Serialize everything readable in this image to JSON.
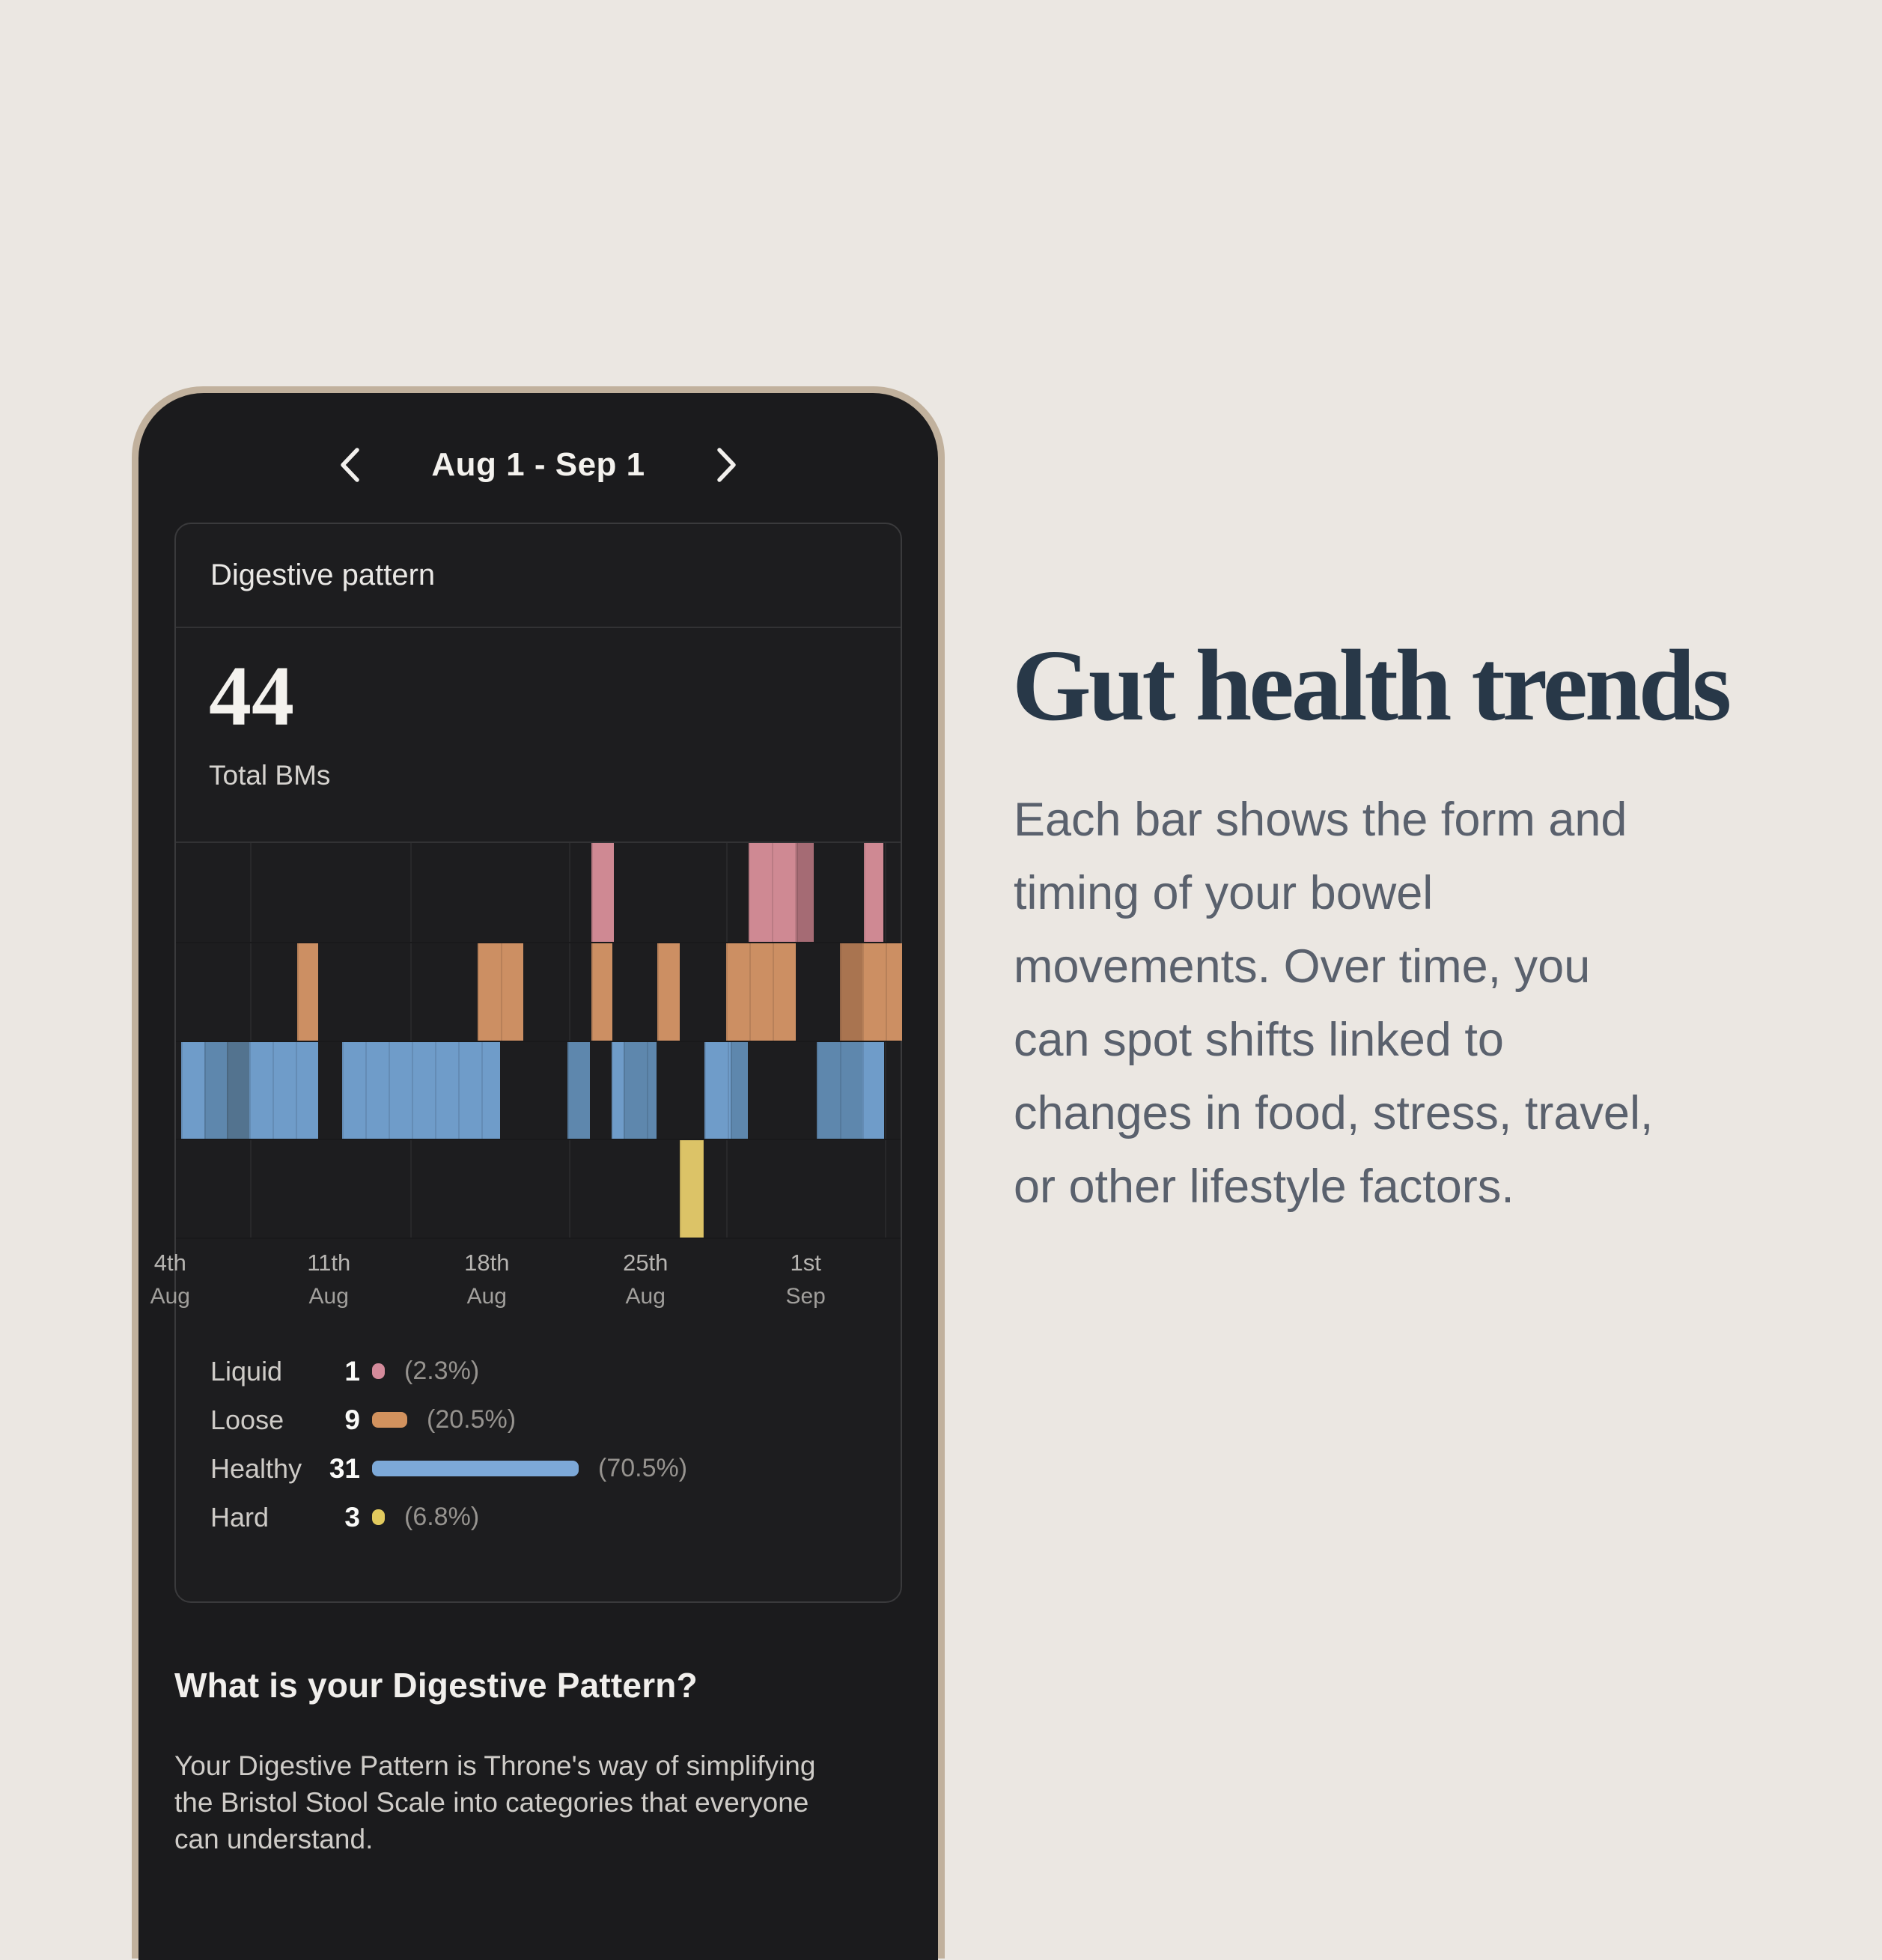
{
  "phone": {
    "header": {
      "date_range": "Aug 1 - Sep 1",
      "prev_icon": "chevron-left",
      "next_icon": "chevron-right"
    },
    "card": {
      "title": "Digestive pattern",
      "total_value": "44",
      "total_label": "Total BMs",
      "chart_data": {
        "type": "heatmap",
        "description": "Timeline of bowel movements Aug 1 - Sep 1; four stacked lanes (Liquid, Loose, Healthy, Hard); bar x-position = date, darker shades = overlapping events",
        "x_range": [
          "Aug 1",
          "Sep 1"
        ],
        "gridlines_pct": [
          10.2,
          32.3,
          54.2,
          75.9,
          97.8
        ],
        "x_ticks": [
          {
            "day": "4th",
            "month": "Aug",
            "pos": -0.8
          },
          {
            "day": "11th",
            "month": "Aug",
            "pos": 21.1
          },
          {
            "day": "18th",
            "month": "Aug",
            "pos": 42.9
          },
          {
            "day": "25th",
            "month": "Aug",
            "pos": 64.8
          },
          {
            "day": "1st",
            "month": "Sep",
            "pos": 86.9
          }
        ],
        "lanes": [
          {
            "name": "Liquid",
            "colors": {
              "light": "#cf8993",
              "dark": "#a56b74"
            },
            "segments": [
              {
                "x": 57.3,
                "w": 3.1,
                "s": "light"
              },
              {
                "x": 79.0,
                "w": 6.6,
                "s": "light"
              },
              {
                "x": 85.6,
                "w": 2.4,
                "s": "dark"
              },
              {
                "x": 94.9,
                "w": 2.7,
                "s": "light"
              }
            ]
          },
          {
            "name": "Loose",
            "colors": {
              "light": "#cc8f63",
              "dark": "#a97450"
            },
            "segments": [
              {
                "x": 16.7,
                "w": 2.9,
                "s": "light"
              },
              {
                "x": 41.6,
                "w": 6.3,
                "s": "light"
              },
              {
                "x": 57.3,
                "w": 2.9,
                "s": "light"
              },
              {
                "x": 66.4,
                "w": 3.1,
                "s": "light"
              },
              {
                "x": 75.9,
                "w": 9.6,
                "s": "light"
              },
              {
                "x": 91.6,
                "w": 3.1,
                "s": "dark"
              },
              {
                "x": 94.7,
                "w": 5.5,
                "s": "light"
              }
            ]
          },
          {
            "name": "Healthy",
            "colors": {
              "light": "#6f9cc9",
              "mid": "#5e87ad",
              "dark": "#53738f"
            },
            "segments": [
              {
                "x": 0.7,
                "w": 3.2,
                "s": "light"
              },
              {
                "x": 3.9,
                "w": 3.1,
                "s": "mid"
              },
              {
                "x": 7.0,
                "w": 3.1,
                "s": "dark"
              },
              {
                "x": 10.1,
                "w": 6.4,
                "s": "light"
              },
              {
                "x": 16.5,
                "w": 3.1,
                "s": "light"
              },
              {
                "x": 22.9,
                "w": 21.8,
                "s": "light"
              },
              {
                "x": 54.0,
                "w": 3.1,
                "s": "mid"
              },
              {
                "x": 60.1,
                "w": 1.7,
                "s": "light"
              },
              {
                "x": 61.8,
                "w": 4.5,
                "s": "mid"
              },
              {
                "x": 72.9,
                "w": 3.6,
                "s": "light"
              },
              {
                "x": 76.5,
                "w": 2.4,
                "s": "mid"
              },
              {
                "x": 88.4,
                "w": 6.3,
                "s": "mid"
              },
              {
                "x": 94.7,
                "w": 3.0,
                "s": "light"
              }
            ]
          },
          {
            "name": "Hard",
            "colors": {
              "light": "#dcc367"
            },
            "segments": [
              {
                "x": 69.5,
                "w": 3.3,
                "s": "light"
              }
            ]
          }
        ]
      },
      "legend": [
        {
          "label": "Liquid",
          "count": "1",
          "pct": "(2.3%)",
          "color": "#d48b9b",
          "swatch_w": 17
        },
        {
          "label": "Loose",
          "count": "9",
          "pct": "(20.5%)",
          "color": "#d2925e",
          "swatch_w": 47
        },
        {
          "label": "Healthy",
          "count": "31",
          "pct": "(70.5%)",
          "color": "#7da9d8",
          "swatch_w": 276
        },
        {
          "label": "Hard",
          "count": "3",
          "pct": "(6.8%)",
          "color": "#e2ca5e",
          "swatch_w": 17
        }
      ]
    },
    "info": {
      "heading": "What is your Digestive Pattern?",
      "body_lines": [
        "Your Digestive Pattern is Throne's way of simplifying",
        "the Bristol Stool Scale into categories that everyone",
        "can understand."
      ]
    }
  },
  "aside": {
    "heading": "Gut health trends",
    "body_lines": [
      "Each bar shows the form and",
      "timing of your bowel",
      "movements. Over time, you",
      "can spot shifts linked to",
      "changes in food, stress, travel,",
      "or other lifestyle factors."
    ]
  }
}
